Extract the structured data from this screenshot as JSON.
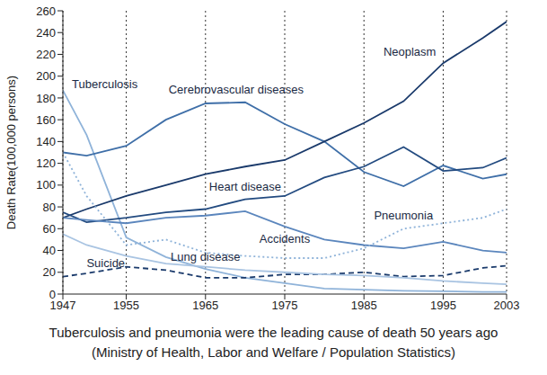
{
  "chart_data": {
    "type": "line",
    "title": null,
    "y_label": "Death Rate(100,000 persons)",
    "caption": [
      "Tuberculosis and pneumonia were the leading cause of death 50 years ago",
      "(Ministry of Health, Labor and Welfare / Population Statistics)"
    ],
    "x": [
      1947,
      1950,
      1955,
      1960,
      1965,
      1970,
      1975,
      1980,
      1985,
      1990,
      1995,
      2000,
      2003
    ],
    "xlim": [
      1947,
      2003
    ],
    "xticks": [
      1947,
      1955,
      1965,
      1975,
      1985,
      1995,
      2003
    ],
    "ylim": [
      0,
      260
    ],
    "yticks": [
      0,
      20,
      40,
      60,
      80,
      100,
      120,
      140,
      160,
      180,
      200,
      220,
      240,
      260
    ],
    "grid": true,
    "series": [
      {
        "name": "Tuberculosis",
        "color": "#8fb3d9",
        "line_style": "solid",
        "values": [
          187,
          146,
          52,
          34,
          23,
          15,
          10,
          5,
          4,
          3,
          2.5,
          2,
          2
        ]
      },
      {
        "name": "Cerebrovascular diseases",
        "color": "#3f6fa8",
        "line_style": "solid",
        "values": [
          130,
          127,
          136,
          160,
          175,
          176,
          156,
          140,
          112,
          99,
          118,
          106,
          110
        ]
      },
      {
        "name": "Neoplasm",
        "color": "#1a3a6b",
        "line_style": "solid",
        "values": [
          70,
          78,
          90,
          100,
          110,
          117,
          123,
          140,
          157,
          177,
          212,
          235,
          250
        ]
      },
      {
        "name": "Heart disease",
        "color": "#234b80",
        "line_style": "solid",
        "values": [
          75,
          66,
          70,
          75,
          78,
          87,
          90,
          107,
          117,
          135,
          113,
          116,
          125
        ]
      },
      {
        "name": "Accidents",
        "color": "#5b86bd",
        "line_style": "solid",
        "values": [
          70,
          68,
          65,
          70,
          72,
          76,
          62,
          50,
          45,
          42,
          48,
          40,
          38
        ]
      },
      {
        "name": "Pneumonia",
        "color": "#8fb3d9",
        "line_style": "dotted",
        "values": [
          130,
          90,
          45,
          50,
          38,
          35,
          33,
          33,
          42,
          60,
          65,
          70,
          78
        ]
      },
      {
        "name": "Suicide",
        "color": "#1a3a6b",
        "line_style": "dashed",
        "values": [
          16,
          19,
          25,
          22,
          15,
          15,
          18,
          18,
          20,
          16,
          17,
          24,
          26
        ]
      },
      {
        "name": "Lung disease",
        "color": "#a9c4e2",
        "line_style": "solid",
        "values": [
          55,
          45,
          35,
          28,
          25,
          22,
          20,
          18,
          17,
          15,
          12,
          10,
          9
        ]
      }
    ]
  }
}
